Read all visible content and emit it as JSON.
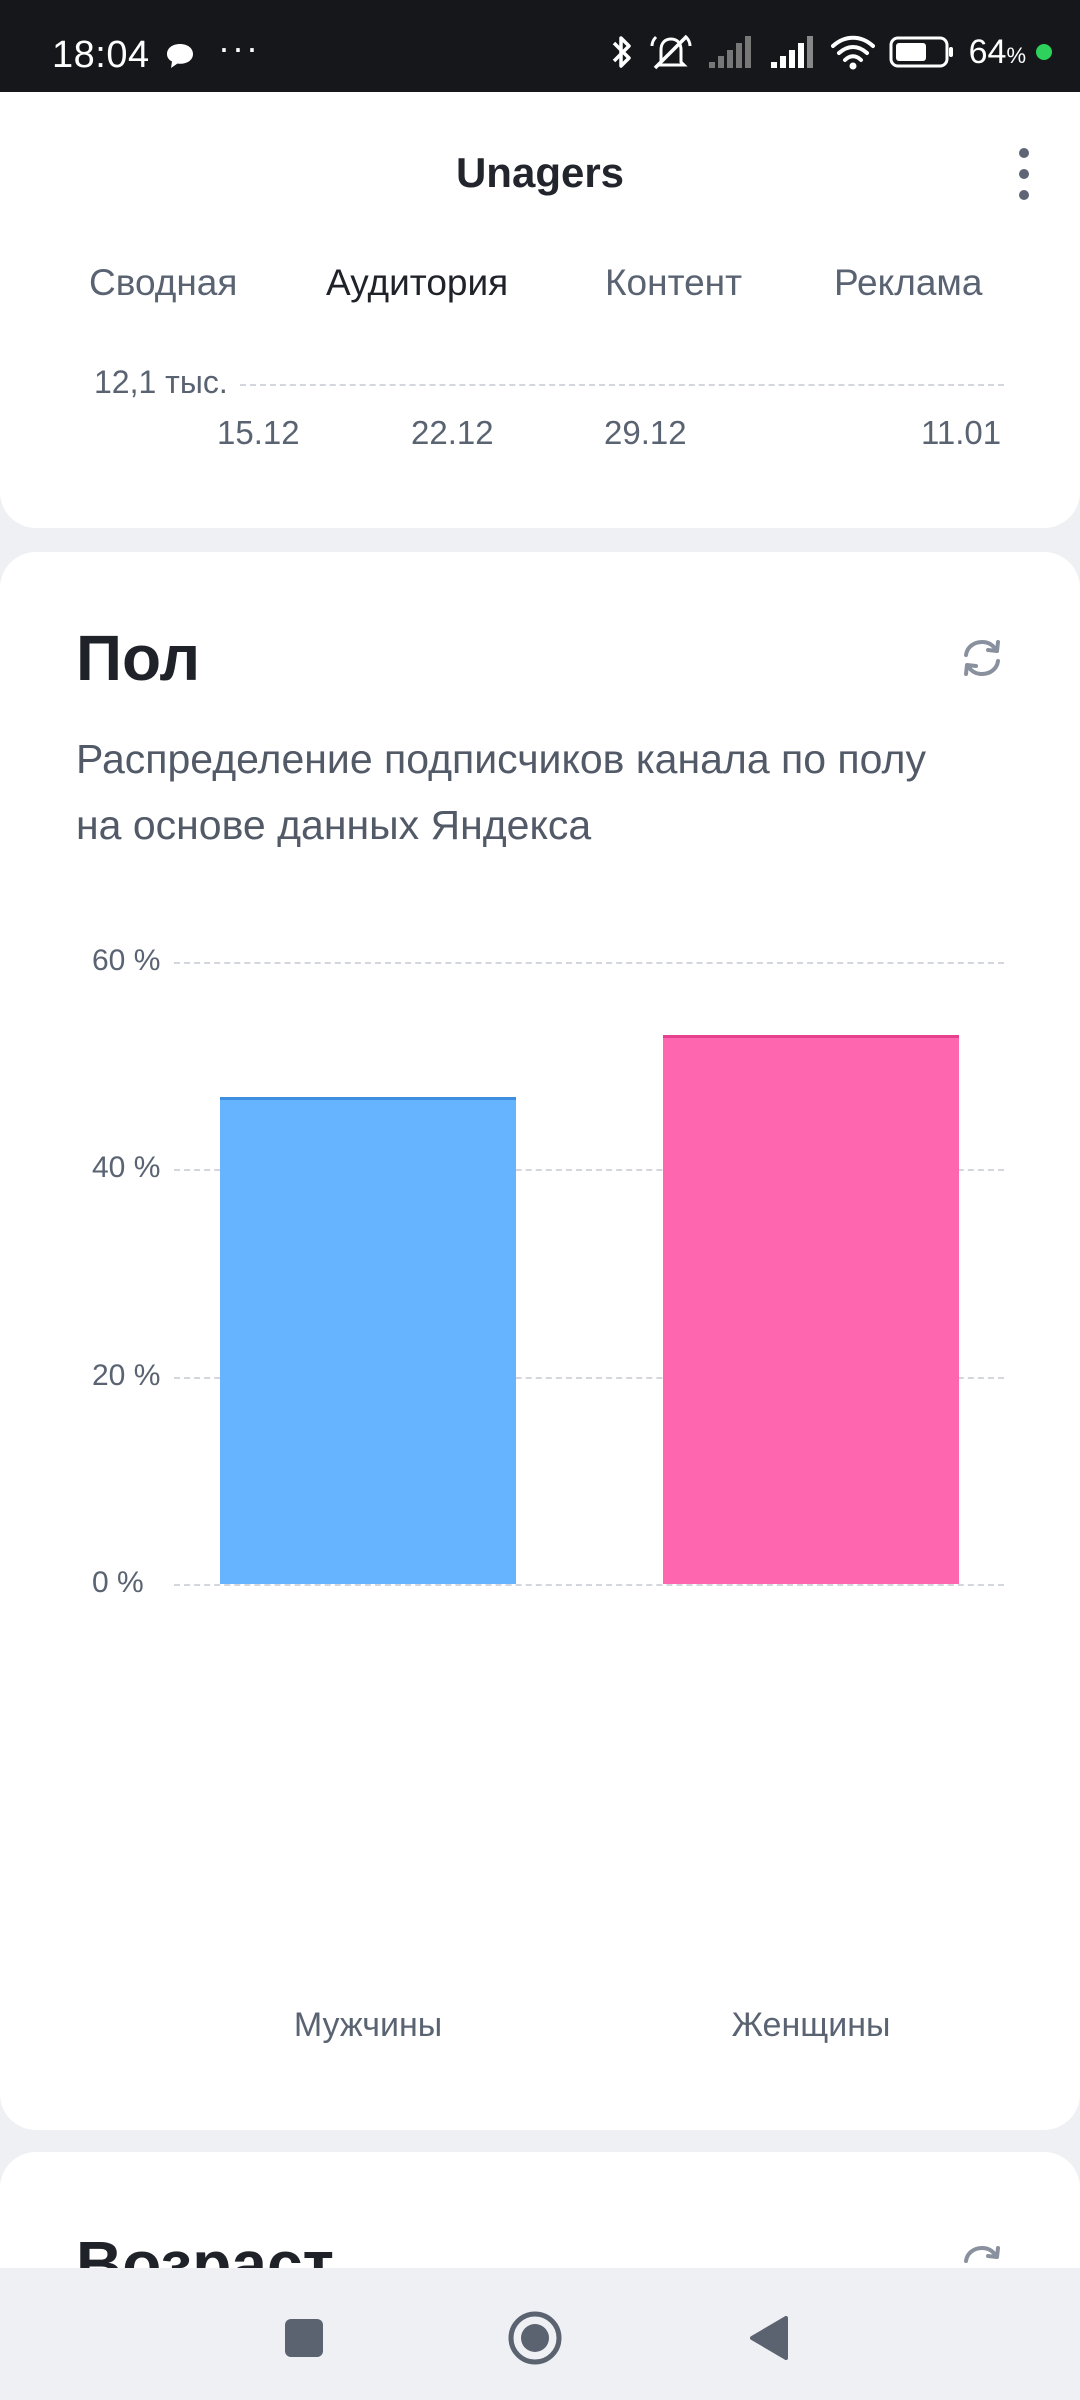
{
  "status_bar": {
    "time": "18:04",
    "dots": "···",
    "battery_percent": "64",
    "battery_unit": "%"
  },
  "app_bar": {
    "title": "Unagers",
    "menu_icon": "more-vertical-icon"
  },
  "tabs": [
    {
      "label": "Сводная",
      "active": false
    },
    {
      "label": "Аудитория",
      "active": true
    },
    {
      "label": "Контент",
      "active": false
    },
    {
      "label": "Реклама",
      "active": false
    }
  ],
  "top_chart": {
    "y_label": "12,1 тыс.",
    "x_ticks": [
      "15.12",
      "22.12",
      "29.12",
      "11.01"
    ]
  },
  "gender_card": {
    "title": "Пол",
    "description": "Распределение подписчиков канала по полу на основе данных Яндекса",
    "refresh_icon": "refresh-icon"
  },
  "chart_data": {
    "type": "bar",
    "title": "",
    "categories": [
      "Мужчины",
      "Женщины"
    ],
    "values": [
      47,
      53
    ],
    "y_ticks": [
      "0 %",
      "20 %",
      "40 %",
      "60 %"
    ],
    "ylim": [
      0,
      60
    ],
    "grid": true,
    "colors": [
      "#66b3ff",
      "#ff66b0"
    ]
  },
  "age_card": {
    "title": "Возраст",
    "refresh_icon": "refresh-icon"
  }
}
